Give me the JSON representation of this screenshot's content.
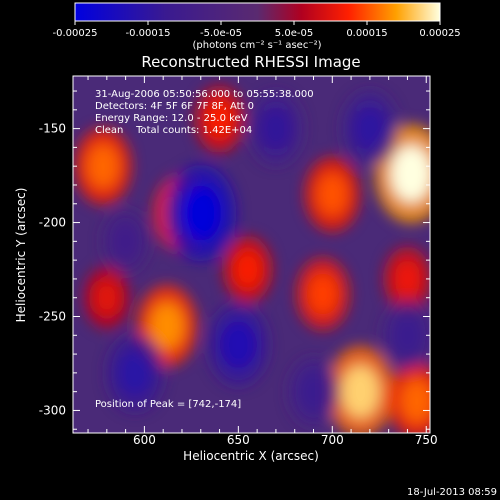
{
  "chart_data": {
    "type": "heatmap",
    "title": "Reconstructed RHESSI Image",
    "xlabel": "Heliocentric X (arcsec)",
    "ylabel": "Heliocentric Y (arcsec)",
    "xlim": [
      562,
      752
    ],
    "ylim": [
      -312,
      -122
    ],
    "x_ticks": [
      600,
      650,
      700,
      750
    ],
    "y_ticks": [
      -150,
      -200,
      -250,
      -300
    ],
    "colorbar": {
      "min": -0.00025,
      "max": 0.00025,
      "ticks": [
        "-0.00025",
        "-0.00015",
        "-5.0e-05",
        "5.0e-05",
        "0.00015",
        "0.00025"
      ],
      "unit_label": "(photons cm⁻² s⁻¹ asec⁻²)"
    },
    "annotations": [
      "31-Aug-2006 05:50:56.000 to 05:55:38.000",
      "Detectors: 4F 5F 6F 7F 8F, Att 0",
      "Energy Range: 12.0 - 25.0 keV",
      "Clean    Total counts: 1.42E+04"
    ],
    "peak_label": "Position of Peak = [742,-174]",
    "peak": [
      742,
      -174
    ],
    "sources": [
      {
        "x": 742,
        "y": -174,
        "value": 0.00025
      },
      {
        "x": 715,
        "y": -290,
        "value": 0.00022
      },
      {
        "x": 612,
        "y": -255,
        "value": 0.00018
      },
      {
        "x": 620,
        "y": -195,
        "value": 0.00016
      },
      {
        "x": 700,
        "y": -185,
        "value": 0.00015
      },
      {
        "x": 578,
        "y": -170,
        "value": 0.00016
      },
      {
        "x": 655,
        "y": -225,
        "value": 0.00012
      },
      {
        "x": 695,
        "y": -238,
        "value": 0.00014
      },
      {
        "x": 745,
        "y": -295,
        "value": 0.00016
      },
      {
        "x": 640,
        "y": -145,
        "value": 0.00012
      },
      {
        "x": 740,
        "y": -230,
        "value": 0.00011
      },
      {
        "x": 580,
        "y": -240,
        "value": 0.0001
      },
      {
        "x": 630,
        "y": -195,
        "value": -0.00024
      },
      {
        "x": 650,
        "y": -265,
        "value": -0.00018
      },
      {
        "x": 720,
        "y": -150,
        "value": -0.00015
      },
      {
        "x": 595,
        "y": -280,
        "value": -0.00016
      },
      {
        "x": 670,
        "y": -150,
        "value": -0.00014
      },
      {
        "x": 690,
        "y": -290,
        "value": -0.00012
      },
      {
        "x": 740,
        "y": -260,
        "value": -0.00012
      },
      {
        "x": 590,
        "y": -210,
        "value": -0.0001
      }
    ]
  },
  "footer_timestamp": "18-Jul-2013 08:59"
}
